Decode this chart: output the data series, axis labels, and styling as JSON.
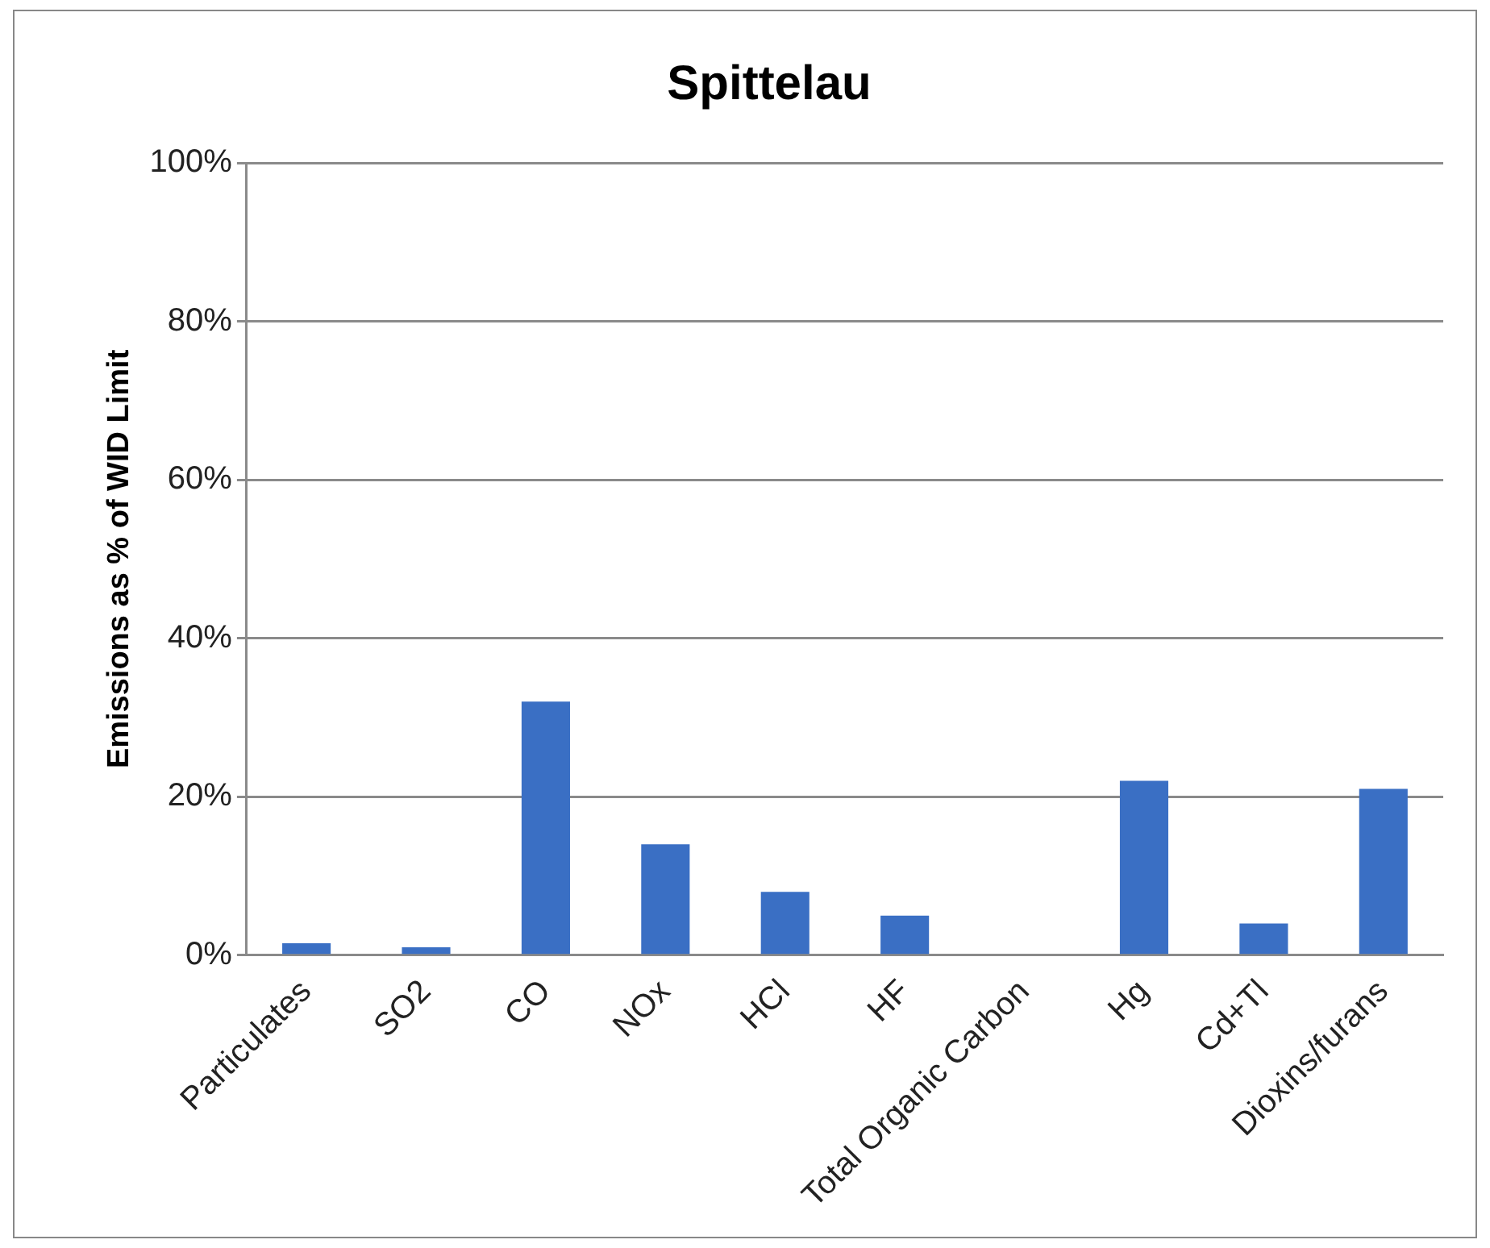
{
  "chart_data": {
    "type": "bar",
    "title": "Spittelau",
    "ylabel": "Emissions as % of WID Limit",
    "categories": [
      "Particulates",
      "SO2",
      "CO",
      "NOx",
      "HCl",
      "HF",
      "Total Organic Carbon",
      "Hg",
      "Cd+Tl",
      "Dioxins/furans"
    ],
    "values": [
      1.5,
      1,
      32,
      14,
      8,
      5,
      0,
      22,
      4,
      21
    ],
    "color": "#3a6fc4",
    "ylim": [
      0,
      100
    ],
    "yticks": [
      {
        "value": 0,
        "label": "0%"
      },
      {
        "value": 20,
        "label": "20%"
      },
      {
        "value": 40,
        "label": "40%"
      },
      {
        "value": 60,
        "label": "60%"
      },
      {
        "value": 80,
        "label": "80%"
      },
      {
        "value": 100,
        "label": "100%"
      }
    ],
    "grid": "y",
    "legend": false
  }
}
